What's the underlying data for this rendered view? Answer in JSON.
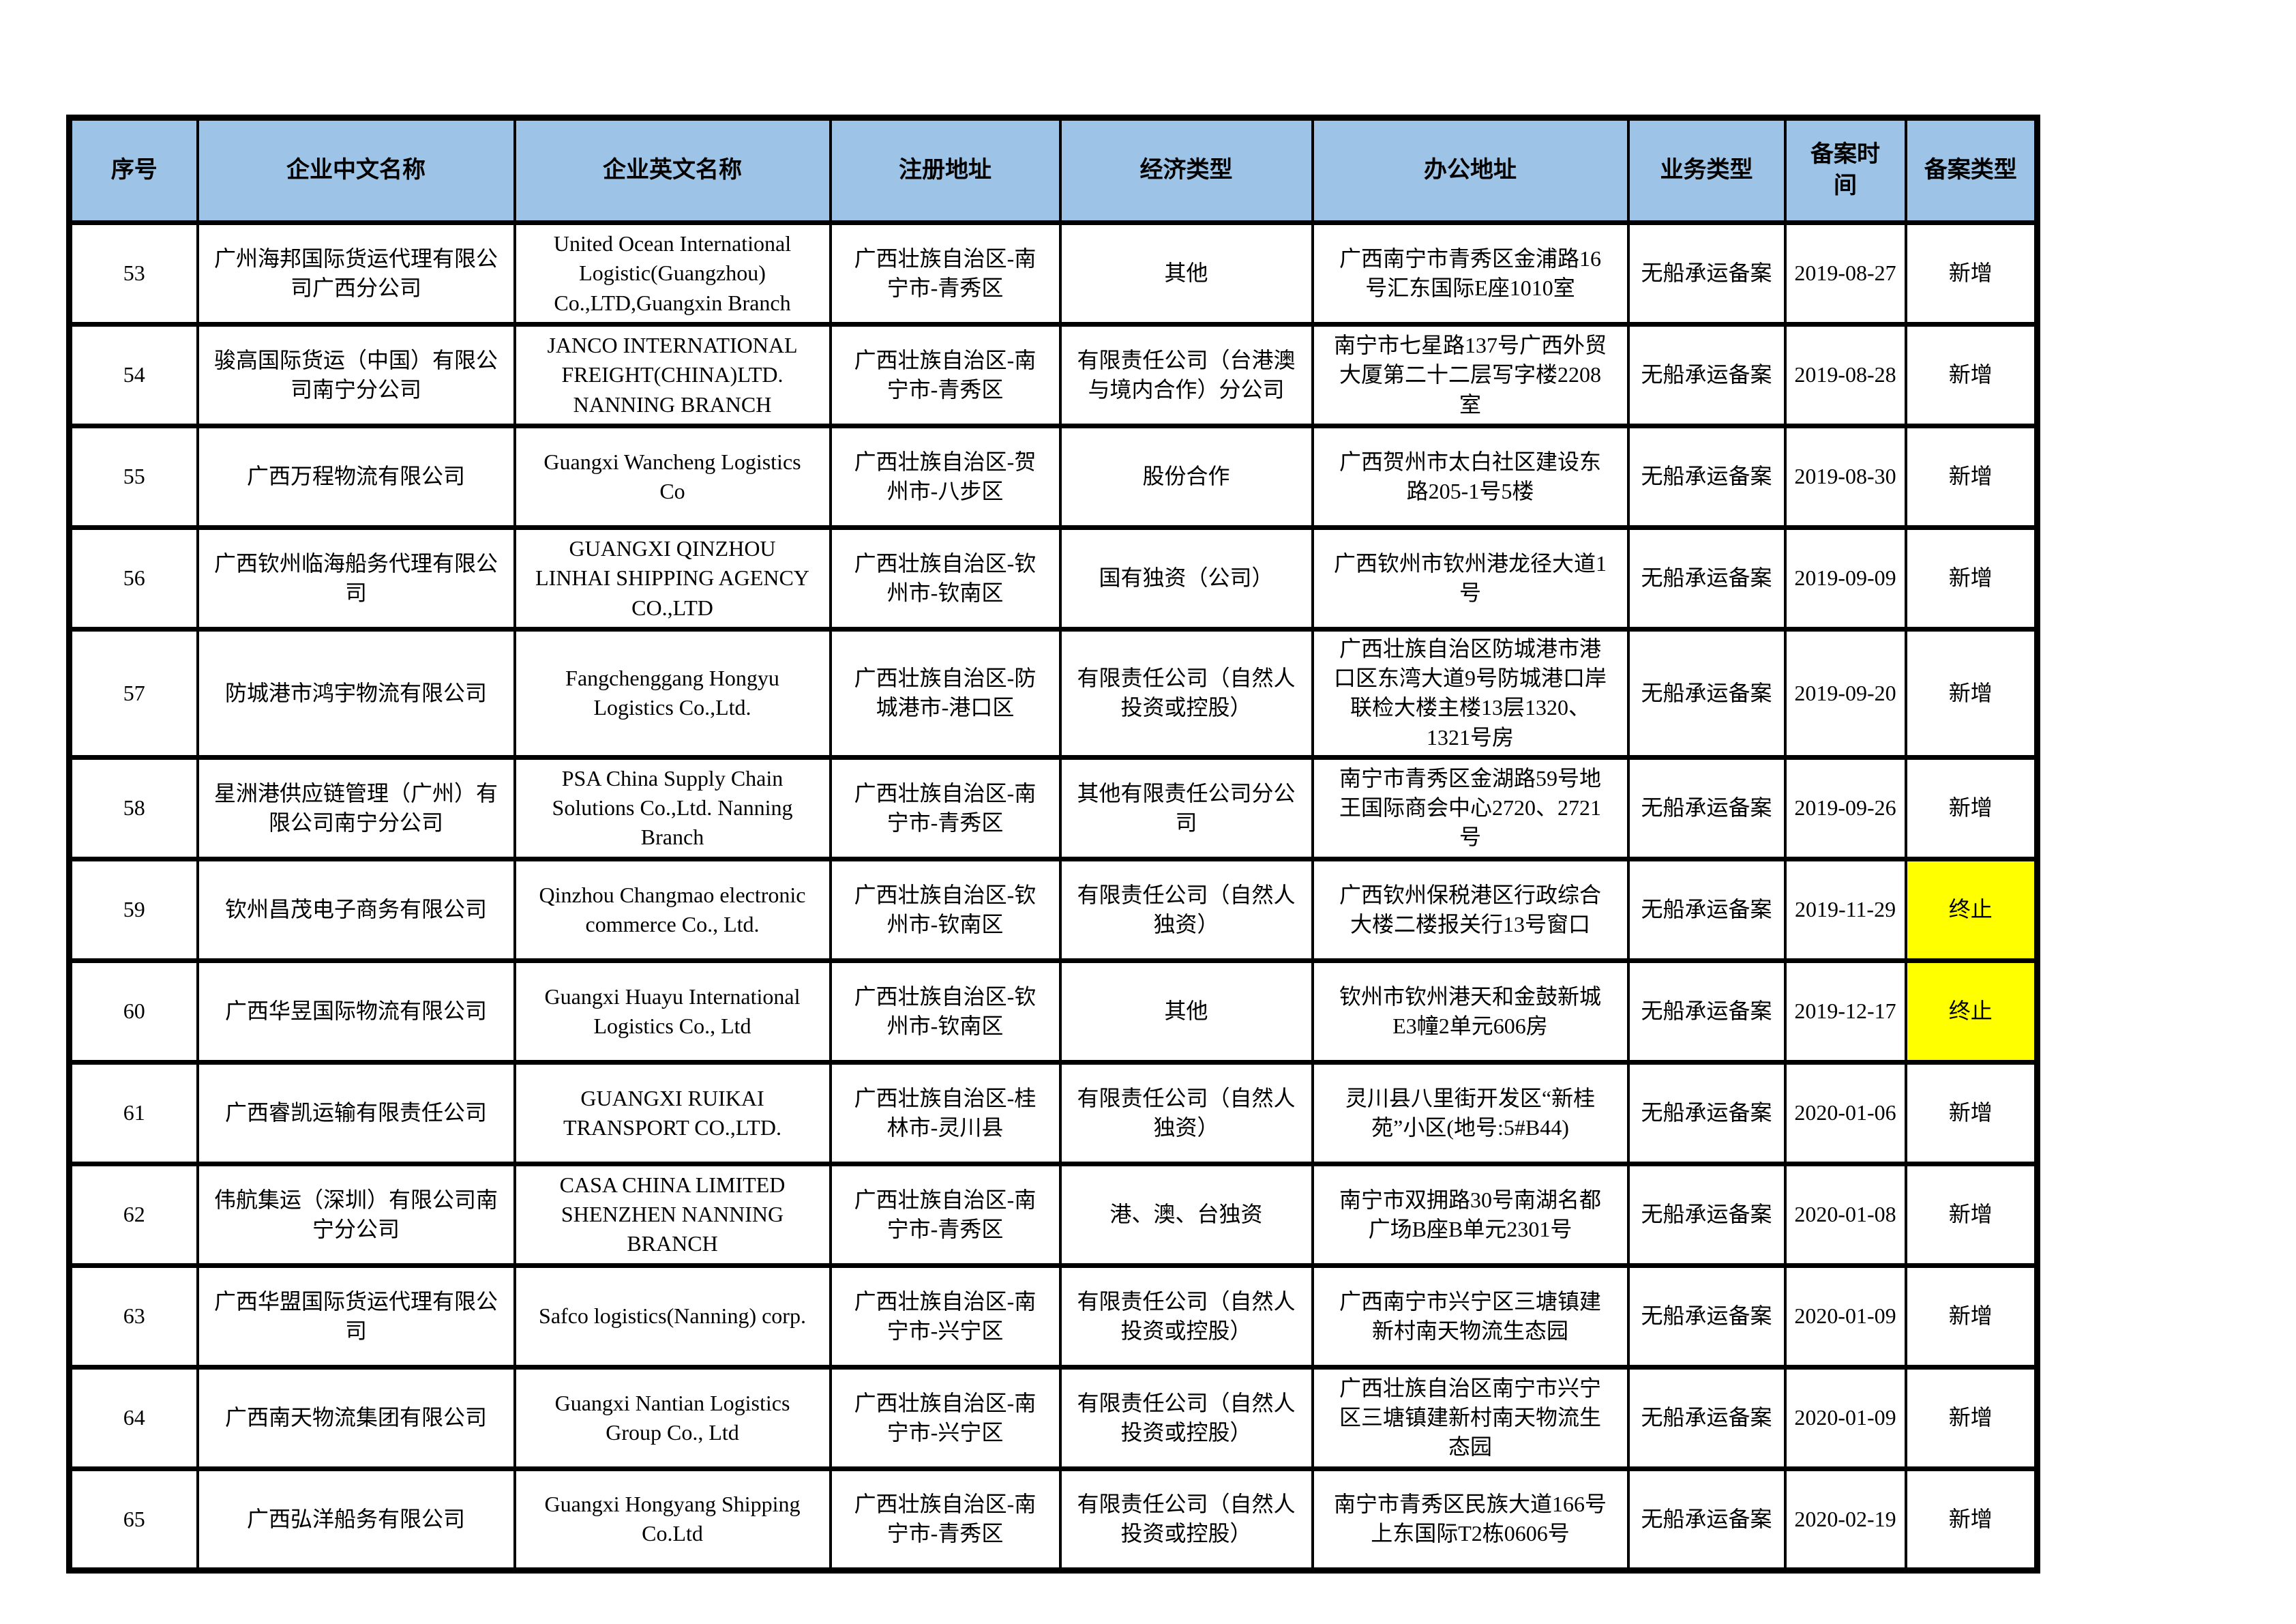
{
  "table": {
    "colors": {
      "header_bg": "#9dc3e6",
      "highlight_bg": "#ffff00",
      "border": "#000000"
    },
    "columns": [
      "序号",
      "企业中文名称",
      "企业英文名称",
      "注册地址",
      "经济类型",
      "办公地址",
      "业务类型",
      "备案时间",
      "备案类型"
    ],
    "rows": [
      {
        "no": "53",
        "cn_name": "广州海邦国际货运代理有限公司广西分公司",
        "en_name": "United Ocean International Logistic(Guangzhou) Co.,LTD,Guangxin Branch",
        "reg_addr": "广西壮族自治区-南宁市-青秀区",
        "econ_type": "其他",
        "office_addr": "广西南宁市青秀区金浦路16号汇东国际E座1010室",
        "biz_type": "无船承运备案",
        "filing_date": "2019-08-27",
        "filing_type": "新增",
        "highlight": false
      },
      {
        "no": "54",
        "cn_name": "骏高国际货运（中国）有限公司南宁分公司",
        "en_name": "JANCO INTERNATIONAL FREIGHT(CHINA)LTD. NANNING BRANCH",
        "reg_addr": "广西壮族自治区-南宁市-青秀区",
        "econ_type": "有限责任公司（台港澳与境内合作）分公司",
        "office_addr": "南宁市七星路137号广西外贸大厦第二十二层写字楼2208室",
        "biz_type": "无船承运备案",
        "filing_date": "2019-08-28",
        "filing_type": "新增",
        "highlight": false
      },
      {
        "no": "55",
        "cn_name": "广西万程物流有限公司",
        "en_name": "Guangxi Wancheng Logistics Co",
        "reg_addr": "广西壮族自治区-贺州市-八步区",
        "econ_type": "股份合作",
        "office_addr": "广西贺州市太白社区建设东路205-1号5楼",
        "biz_type": "无船承运备案",
        "filing_date": "2019-08-30",
        "filing_type": "新增",
        "highlight": false
      },
      {
        "no": "56",
        "cn_name": "广西钦州临海船务代理有限公司",
        "en_name": "GUANGXI QINZHOU LINHAI SHIPPING AGENCY CO.,LTD",
        "reg_addr": "广西壮族自治区-钦州市-钦南区",
        "econ_type": "国有独资（公司）",
        "office_addr": "广西钦州市钦州港龙径大道1号",
        "biz_type": "无船承运备案",
        "filing_date": "2019-09-09",
        "filing_type": "新增",
        "highlight": false
      },
      {
        "no": "57",
        "cn_name": "防城港市鸿宇物流有限公司",
        "en_name": "Fangchenggang Hongyu Logistics Co.,Ltd.",
        "reg_addr": "广西壮族自治区-防城港市-港口区",
        "econ_type": "有限责任公司（自然人投资或控股）",
        "office_addr": "广西壮族自治区防城港市港口区东湾大道9号防城港口岸联检大楼主楼13层1320、1321号房",
        "biz_type": "无船承运备案",
        "filing_date": "2019-09-20",
        "filing_type": "新增",
        "highlight": false
      },
      {
        "no": "58",
        "cn_name": "星洲港供应链管理（广州）有限公司南宁分公司",
        "en_name": "PSA China Supply Chain Solutions Co.,Ltd. Nanning Branch",
        "reg_addr": "广西壮族自治区-南宁市-青秀区",
        "econ_type": "其他有限责任公司分公司",
        "office_addr": "南宁市青秀区金湖路59号地王国际商会中心2720、2721号",
        "biz_type": "无船承运备案",
        "filing_date": "2019-09-26",
        "filing_type": "新增",
        "highlight": false
      },
      {
        "no": "59",
        "cn_name": "钦州昌茂电子商务有限公司",
        "en_name": "Qinzhou Changmao electronic commerce Co., Ltd.",
        "reg_addr": "广西壮族自治区-钦州市-钦南区",
        "econ_type": "有限责任公司（自然人独资）",
        "office_addr": "广西钦州保税港区行政综合大楼二楼报关行13号窗口",
        "biz_type": "无船承运备案",
        "filing_date": "2019-11-29",
        "filing_type": "终止",
        "highlight": true
      },
      {
        "no": "60",
        "cn_name": "广西华昱国际物流有限公司",
        "en_name": "Guangxi Huayu International Logistics Co., Ltd",
        "reg_addr": "广西壮族自治区-钦州市-钦南区",
        "econ_type": "其他",
        "office_addr": "钦州市钦州港天和金鼓新城E3幢2单元606房",
        "biz_type": "无船承运备案",
        "filing_date": "2019-12-17",
        "filing_type": "终止",
        "highlight": true
      },
      {
        "no": "61",
        "cn_name": "广西睿凯运输有限责任公司",
        "en_name": "GUANGXI RUIKAI TRANSPORT CO.,LTD.",
        "reg_addr": "广西壮族自治区-桂林市-灵川县",
        "econ_type": "有限责任公司（自然人独资）",
        "office_addr": "灵川县八里街开发区“新桂苑”小区(地号:5#B44)",
        "biz_type": "无船承运备案",
        "filing_date": "2020-01-06",
        "filing_type": "新增",
        "highlight": false
      },
      {
        "no": "62",
        "cn_name": "伟航集运（深圳）有限公司南宁分公司",
        "en_name": "CASA CHINA LIMITED SHENZHEN NANNING BRANCH",
        "reg_addr": "广西壮族自治区-南宁市-青秀区",
        "econ_type": "港、澳、台独资",
        "office_addr": "南宁市双拥路30号南湖名都广场B座B单元2301号",
        "biz_type": "无船承运备案",
        "filing_date": "2020-01-08",
        "filing_type": "新增",
        "highlight": false
      },
      {
        "no": "63",
        "cn_name": "广西华盟国际货运代理有限公司",
        "en_name": "Safco logistics(Nanning) corp.",
        "reg_addr": "广西壮族自治区-南宁市-兴宁区",
        "econ_type": "有限责任公司（自然人投资或控股）",
        "office_addr": "广西南宁市兴宁区三塘镇建新村南天物流生态园",
        "biz_type": "无船承运备案",
        "filing_date": "2020-01-09",
        "filing_type": "新增",
        "highlight": false
      },
      {
        "no": "64",
        "cn_name": "广西南天物流集团有限公司",
        "en_name": "Guangxi Nantian Logistics Group Co., Ltd",
        "reg_addr": "广西壮族自治区-南宁市-兴宁区",
        "econ_type": "有限责任公司（自然人投资或控股）",
        "office_addr": "广西壮族自治区南宁市兴宁区三塘镇建新村南天物流生态园",
        "biz_type": "无船承运备案",
        "filing_date": "2020-01-09",
        "filing_type": "新增",
        "highlight": false
      },
      {
        "no": "65",
        "cn_name": "广西弘洋船务有限公司",
        "en_name": "Guangxi Hongyang Shipping Co.Ltd",
        "reg_addr": "广西壮族自治区-南宁市-青秀区",
        "econ_type": "有限责任公司（自然人投资或控股）",
        "office_addr": "南宁市青秀区民族大道166号上东国际T2栋0606号",
        "biz_type": "无船承运备案",
        "filing_date": "2020-02-19",
        "filing_type": "新增",
        "highlight": false
      }
    ]
  }
}
